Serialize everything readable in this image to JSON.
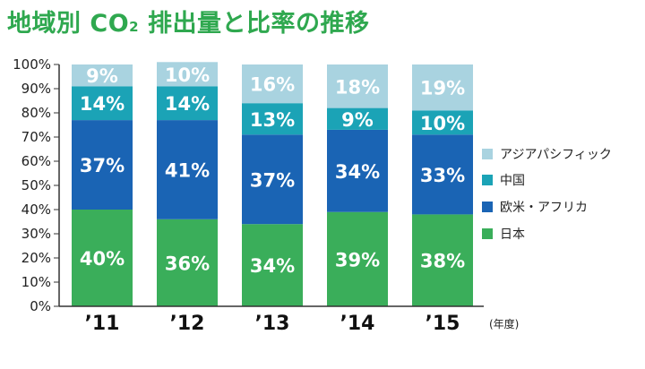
{
  "title": {
    "main_before": "地域別 CO",
    "sub": "2",
    "main_after": " 排出量と比率の推移"
  },
  "chart_data": {
    "type": "bar",
    "stacked": true,
    "title": "地域別 CO₂ 排出量と比率の推移",
    "categories": [
      "’11",
      "’12",
      "’13",
      "’14",
      "’15"
    ],
    "x_unit": "(年度)",
    "ylim": [
      0,
      100
    ],
    "y_ticks": [
      "0%",
      "10%",
      "20%",
      "30%",
      "40%",
      "50%",
      "60%",
      "70%",
      "80%",
      "90%",
      "100%"
    ],
    "legend_position": "right",
    "series": [
      {
        "name": "日本",
        "color": "#3aae5a",
        "values": [
          40,
          36,
          34,
          39,
          38
        ],
        "labels": [
          "40%",
          "36%",
          "34%",
          "39%",
          "38%"
        ]
      },
      {
        "name": "欧米・アフリカ",
        "color": "#1a64b4",
        "values": [
          37,
          41,
          37,
          34,
          33
        ],
        "labels": [
          "37%",
          "41%",
          "37%",
          "34%",
          "33%"
        ]
      },
      {
        "name": "中国",
        "color": "#1ba3b6",
        "values": [
          14,
          14,
          13,
          9,
          10
        ],
        "labels": [
          "14%",
          "14%",
          "13%",
          "9%",
          "10%"
        ]
      },
      {
        "name": "アジアパシフィック",
        "color": "#a9d3e0",
        "values": [
          9,
          10,
          16,
          18,
          19
        ],
        "labels": [
          "9%",
          "10%",
          "16%",
          "18%",
          "19%"
        ]
      }
    ],
    "legend_order": [
      "アジアパシフィック",
      "中国",
      "欧米・アフリカ",
      "日本"
    ]
  }
}
